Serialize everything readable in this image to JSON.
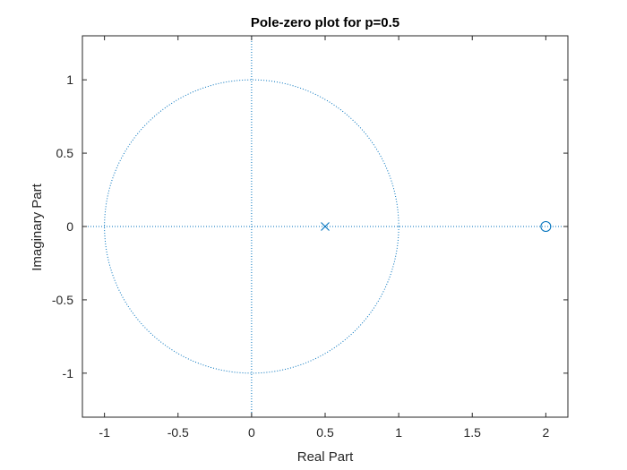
{
  "chart_data": {
    "type": "scatter",
    "title": "Pole-zero plot for p=0.5",
    "xlabel": "Real Part",
    "ylabel": "Imaginary Part",
    "xlim": [
      -1.15,
      2.15
    ],
    "ylim": [
      -1.3,
      1.3
    ],
    "x_ticks": [
      -1,
      -0.5,
      0,
      0.5,
      1,
      1.5,
      2
    ],
    "x_tick_labels": [
      "-1",
      "-0.5",
      "0",
      "0.5",
      "1",
      "1.5",
      "2"
    ],
    "y_ticks": [
      1,
      0.5,
      0,
      -0.5,
      -1
    ],
    "y_tick_labels": [
      "1",
      "0.5",
      "0",
      "-0.5",
      "-1"
    ],
    "grid": false,
    "unit_circle": {
      "center": [
        0,
        0
      ],
      "radius": 1,
      "style": "dotted"
    },
    "reference_lines": [
      {
        "orientation": "horizontal",
        "value": 0,
        "style": "dotted"
      },
      {
        "orientation": "vertical",
        "value": 0,
        "style": "dotted"
      }
    ],
    "series": [
      {
        "marker": "x",
        "points": [
          {
            "x": 0.5,
            "y": 0
          }
        ]
      },
      {
        "marker": "o",
        "points": [
          {
            "x": 2,
            "y": 0
          }
        ]
      }
    ],
    "colors": {
      "markers": "#0072BD",
      "axes": "#262626",
      "background": "#ffffff"
    }
  }
}
